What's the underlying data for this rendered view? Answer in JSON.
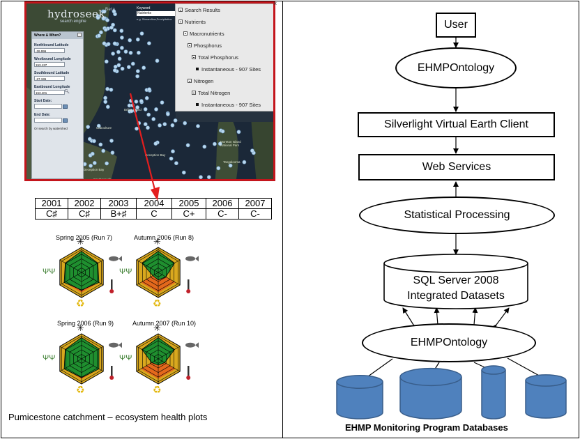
{
  "map_app": {
    "logo": "hydroseek",
    "logo_beta": "Beta",
    "logo_sub": "search engine",
    "keyword_label": "Keyword",
    "keyword_value": "Nutrients",
    "keyword_hint": "e.g. Streamflow,Precipitation",
    "panel_title": "Where & When?",
    "fields": [
      {
        "label": "Northbound Latitude",
        "value": "-26.996"
      },
      {
        "label": "Westbound Longitude",
        "value": "153.137"
      },
      {
        "label": "Southbound Latitude",
        "value": "-27.195"
      },
      {
        "label": "Eastbound Longitude",
        "value": "153.401"
      },
      {
        "label": "Start Date:",
        "value": ""
      },
      {
        "label": "End Date:",
        "value": ""
      }
    ],
    "or_search": "Or search by watershed",
    "tree": [
      {
        "label": "Search Results",
        "level": 0,
        "kind": "box"
      },
      {
        "label": "Nutrients",
        "level": 0,
        "kind": "box"
      },
      {
        "label": "Macronutrients",
        "level": 1,
        "kind": "box"
      },
      {
        "label": "Phosphorus",
        "level": 2,
        "kind": "box"
      },
      {
        "label": "Total Phosphorus",
        "level": 3,
        "kind": "box"
      },
      {
        "label": "Instantaneous - 907 Sites",
        "level": 4,
        "kind": "leaf"
      },
      {
        "label": "Nitrogen",
        "level": 2,
        "kind": "box"
      },
      {
        "label": "Total Nitrogen",
        "level": 3,
        "kind": "box"
      },
      {
        "label": "Instantaneous - 907 Sites",
        "level": 4,
        "kind": "leaf"
      }
    ],
    "places": [
      {
        "name": "Deception Bay"
      },
      {
        "name": "Deception Bay"
      },
      {
        "name": "Bribie Island"
      },
      {
        "name": "Moreton Island National Park"
      },
      {
        "name": "Tangalooma"
      },
      {
        "name": "Caboolture"
      },
      {
        "name": "Scarborough"
      }
    ]
  },
  "health_table": {
    "years": [
      "2001",
      "2002",
      "2003",
      "2004",
      "2005",
      "2006",
      "2007"
    ],
    "grades": [
      "C♯",
      "C♯",
      "B+♯",
      "C",
      "C+",
      "C-",
      "C-"
    ]
  },
  "plots": [
    {
      "title": "Spring 2005 (Run 7)",
      "scores": [
        0.85,
        0.75,
        0.8,
        0.7,
        0.8,
        0.75
      ]
    },
    {
      "title": "Autumn 2006 (Run 8)",
      "scores": [
        0.85,
        0.75,
        0.35,
        0.3,
        0.25,
        0.75
      ]
    },
    {
      "title": "Spring 2006 (Run 9)",
      "scores": [
        0.85,
        0.8,
        0.8,
        0.75,
        0.8,
        0.75
      ]
    },
    {
      "title": "Autumn 2007 (Run 10)",
      "scores": [
        0.85,
        0.75,
        0.3,
        0.25,
        0.3,
        0.75
      ]
    }
  ],
  "plot_colors": {
    "green": "#1f8f2f",
    "outline": "#000000",
    "outer": "#d9a81e",
    "orange": "#e4681c",
    "empty": "#ffffff"
  },
  "caption": "Pumicestone catchment – ecosystem health plots",
  "architecture": {
    "user": "User",
    "ontology_top": "EHMPOntology",
    "client": "Silverlight Virtual Earth Client",
    "web_services": "Web Services",
    "stats": "Statistical Processing",
    "sql_line1": "SQL Server 2008",
    "sql_line2": "Integrated Datasets",
    "ontology_bottom": "EHMPOntology",
    "databases_label": "EHMP Monitoring Program Databases",
    "db_color": "#4f81bd",
    "db_stroke": "#385d8a"
  }
}
